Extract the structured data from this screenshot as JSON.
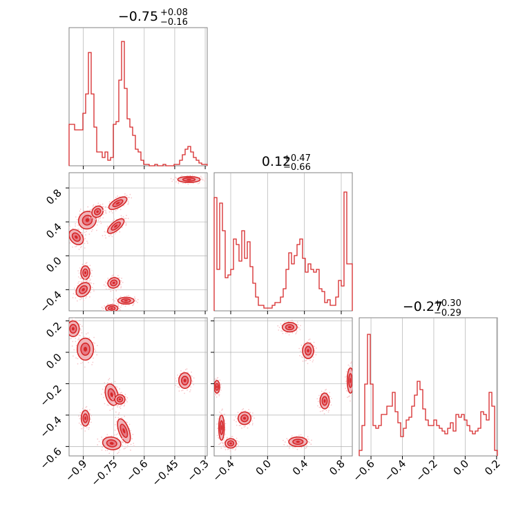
{
  "colors": {
    "series": "#d62728",
    "fill1": "#f0b4b9",
    "fill2": "#e67a84",
    "grid": "#b0b0b0",
    "axis": "#808080"
  },
  "chart_data": [
    {
      "type": "histogram",
      "panel": "p00",
      "title": {
        "base": "−0.75",
        "plus": "+0.08",
        "minus": "−0.16"
      },
      "x_range": [
        -0.97,
        -0.29
      ],
      "y_range": [
        0,
        1.0
      ],
      "ticks": [
        -0.9,
        -0.75,
        -0.6,
        -0.45,
        -0.3
      ],
      "bins_x0": -0.97,
      "bins_dx": 0.0136,
      "counts": [
        0.3,
        0.3,
        0.26,
        0.26,
        0.26,
        0.38,
        0.52,
        0.82,
        0.52,
        0.28,
        0.1,
        0.1,
        0.06,
        0.1,
        0.04,
        0.06,
        0.3,
        0.32,
        0.62,
        0.9,
        0.56,
        0.34,
        0.28,
        0.22,
        0.12,
        0.1,
        0.04,
        0.01,
        0.01,
        0.0,
        0.0,
        0.01,
        0.0,
        0.0,
        0.01,
        0.0,
        0.0,
        0.0,
        0.01,
        0.01,
        0.04,
        0.08,
        0.12,
        0.14,
        0.1,
        0.06,
        0.04,
        0.02,
        0.01,
        0.01
      ]
    },
    {
      "type": "histogram",
      "panel": "p11",
      "title": {
        "base": "0.12",
        "plus": "+0.47",
        "minus": "−0.66"
      },
      "x_range": [
        -0.58,
        0.92
      ],
      "y_range": [
        0,
        1.0
      ],
      "ticks": [
        -0.4,
        0.0,
        0.4,
        0.8
      ],
      "bins_x0": -0.58,
      "bins_dx": 0.03,
      "counts": [
        0.82,
        0.3,
        0.78,
        0.58,
        0.24,
        0.26,
        0.3,
        0.52,
        0.48,
        0.36,
        0.58,
        0.38,
        0.5,
        0.32,
        0.2,
        0.1,
        0.04,
        0.04,
        0.02,
        0.02,
        0.02,
        0.04,
        0.06,
        0.06,
        0.1,
        0.16,
        0.3,
        0.42,
        0.34,
        0.4,
        0.48,
        0.52,
        0.38,
        0.28,
        0.34,
        0.3,
        0.28,
        0.3,
        0.16,
        0.14,
        0.06,
        0.08,
        0.04,
        0.04,
        0.1,
        0.22,
        0.18,
        0.86,
        0.34,
        0.34
      ]
    },
    {
      "type": "histogram",
      "panel": "p22",
      "title": {
        "base": "−0.27",
        "plus": "+0.30",
        "minus": "−0.29"
      },
      "x_range": [
        -0.675,
        0.205
      ],
      "y_range": [
        0,
        1.0
      ],
      "ticks": [
        -0.6,
        -0.4,
        -0.2,
        0.0,
        0.2
      ],
      "bins_x0": -0.675,
      "bins_dx": 0.0176,
      "counts": [
        0.04,
        0.22,
        0.52,
        0.88,
        0.52,
        0.22,
        0.2,
        0.22,
        0.3,
        0.3,
        0.36,
        0.36,
        0.46,
        0.32,
        0.24,
        0.14,
        0.2,
        0.26,
        0.28,
        0.36,
        0.44,
        0.54,
        0.48,
        0.34,
        0.26,
        0.22,
        0.22,
        0.26,
        0.22,
        0.2,
        0.18,
        0.16,
        0.2,
        0.24,
        0.18,
        0.3,
        0.28,
        0.3,
        0.26,
        0.22,
        0.18,
        0.16,
        0.18,
        0.2,
        0.32,
        0.3,
        0.26,
        0.46,
        0.36,
        0.04
      ]
    },
    {
      "type": "contour",
      "panel": "p10",
      "x_range": [
        -0.97,
        -0.29
      ],
      "y_range": [
        -0.65,
        0.98
      ],
      "xticks": [
        -0.9,
        -0.75,
        -0.6,
        -0.45,
        -0.3
      ],
      "yticks": [
        0.8,
        0.4,
        0.0,
        -0.4
      ],
      "blobs": [
        {
          "x": -0.935,
          "y": 0.22,
          "rx": 0.03,
          "ry": 0.1,
          "rot": -40
        },
        {
          "x": -0.88,
          "y": 0.42,
          "rx": 0.045,
          "ry": 0.1,
          "rot": -45
        },
        {
          "x": -0.83,
          "y": 0.52,
          "rx": 0.03,
          "ry": 0.06,
          "rot": -45
        },
        {
          "x": -0.73,
          "y": 0.62,
          "rx": 0.05,
          "ry": 0.05,
          "rot": -30
        },
        {
          "x": -0.74,
          "y": 0.35,
          "rx": 0.05,
          "ry": 0.05,
          "rot": -40
        },
        {
          "x": -0.89,
          "y": -0.2,
          "rx": 0.022,
          "ry": 0.08,
          "rot": 0
        },
        {
          "x": -0.9,
          "y": -0.4,
          "rx": 0.04,
          "ry": 0.07,
          "rot": -45
        },
        {
          "x": -0.75,
          "y": -0.32,
          "rx": 0.03,
          "ry": 0.06,
          "rot": -20
        },
        {
          "x": -0.69,
          "y": -0.53,
          "rx": 0.04,
          "ry": 0.04,
          "rot": 0
        },
        {
          "x": -0.76,
          "y": -0.62,
          "rx": 0.03,
          "ry": 0.04,
          "rot": 0
        },
        {
          "x": -0.38,
          "y": 0.9,
          "rx": 0.055,
          "ry": 0.035,
          "rot": 0
        }
      ]
    },
    {
      "type": "contour",
      "panel": "p20",
      "x_range": [
        -0.97,
        -0.29
      ],
      "y_range": [
        -0.66,
        0.22
      ],
      "xticks": [
        -0.9,
        -0.75,
        -0.6,
        -0.45,
        -0.3
      ],
      "yticks": [
        0.2,
        0.0,
        -0.2,
        -0.4,
        -0.6
      ],
      "blobs": [
        {
          "x": -0.95,
          "y": 0.15,
          "rx": 0.03,
          "ry": 0.05,
          "rot": 0
        },
        {
          "x": -0.89,
          "y": 0.02,
          "rx": 0.04,
          "ry": 0.07,
          "rot": 0
        },
        {
          "x": -0.89,
          "y": -0.42,
          "rx": 0.02,
          "ry": 0.05,
          "rot": 0
        },
        {
          "x": -0.76,
          "y": -0.27,
          "rx": 0.03,
          "ry": 0.07,
          "rot": -15
        },
        {
          "x": -0.72,
          "y": -0.3,
          "rx": 0.025,
          "ry": 0.03,
          "rot": 0
        },
        {
          "x": -0.7,
          "y": -0.5,
          "rx": 0.025,
          "ry": 0.08,
          "rot": -20
        },
        {
          "x": -0.76,
          "y": -0.58,
          "rx": 0.045,
          "ry": 0.04,
          "rot": 10
        },
        {
          "x": -0.4,
          "y": -0.18,
          "rx": 0.03,
          "ry": 0.05,
          "rot": 0
        }
      ]
    },
    {
      "type": "contour",
      "panel": "p21",
      "x_range": [
        -0.58,
        0.92
      ],
      "y_range": [
        -0.66,
        0.22
      ],
      "xticks": [
        -0.4,
        0.0,
        0.4,
        0.8
      ],
      "yticks": [
        0.2,
        0.0,
        -0.2,
        -0.4,
        -0.6
      ],
      "blobs": [
        {
          "x": -0.55,
          "y": -0.22,
          "rx": 0.03,
          "ry": 0.04,
          "rot": 0
        },
        {
          "x": -0.5,
          "y": -0.48,
          "rx": 0.03,
          "ry": 0.08,
          "rot": 0
        },
        {
          "x": -0.4,
          "y": -0.58,
          "rx": 0.06,
          "ry": 0.03,
          "rot": 0
        },
        {
          "x": -0.25,
          "y": -0.42,
          "rx": 0.07,
          "ry": 0.04,
          "rot": -20
        },
        {
          "x": 0.33,
          "y": -0.57,
          "rx": 0.1,
          "ry": 0.03,
          "rot": 0
        },
        {
          "x": 0.24,
          "y": 0.16,
          "rx": 0.08,
          "ry": 0.03,
          "rot": 0
        },
        {
          "x": 0.44,
          "y": 0.01,
          "rx": 0.06,
          "ry": 0.05,
          "rot": 0
        },
        {
          "x": 0.62,
          "y": -0.31,
          "rx": 0.05,
          "ry": 0.05,
          "rot": 0
        },
        {
          "x": 0.9,
          "y": -0.18,
          "rx": 0.035,
          "ry": 0.08,
          "rot": 0
        }
      ]
    }
  ]
}
